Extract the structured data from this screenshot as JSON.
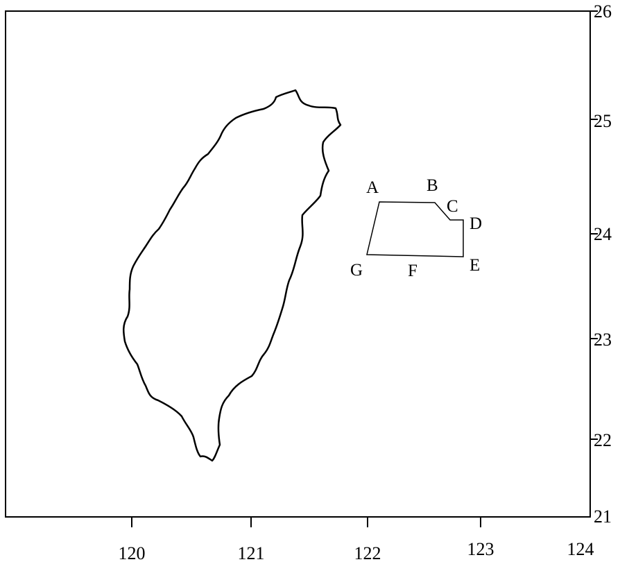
{
  "map": {
    "x_axis": {
      "ticks": [
        "120",
        "121",
        "122",
        "123",
        "124"
      ]
    },
    "y_axis": {
      "ticks": [
        "26",
        "25",
        "24",
        "23",
        "22",
        "21"
      ]
    },
    "region_points": {
      "A": "A",
      "B": "B",
      "C": "C",
      "D": "D",
      "E": "E",
      "F": "F",
      "G": "G"
    },
    "colors": {
      "line": "#000000",
      "background": "#ffffff"
    }
  }
}
